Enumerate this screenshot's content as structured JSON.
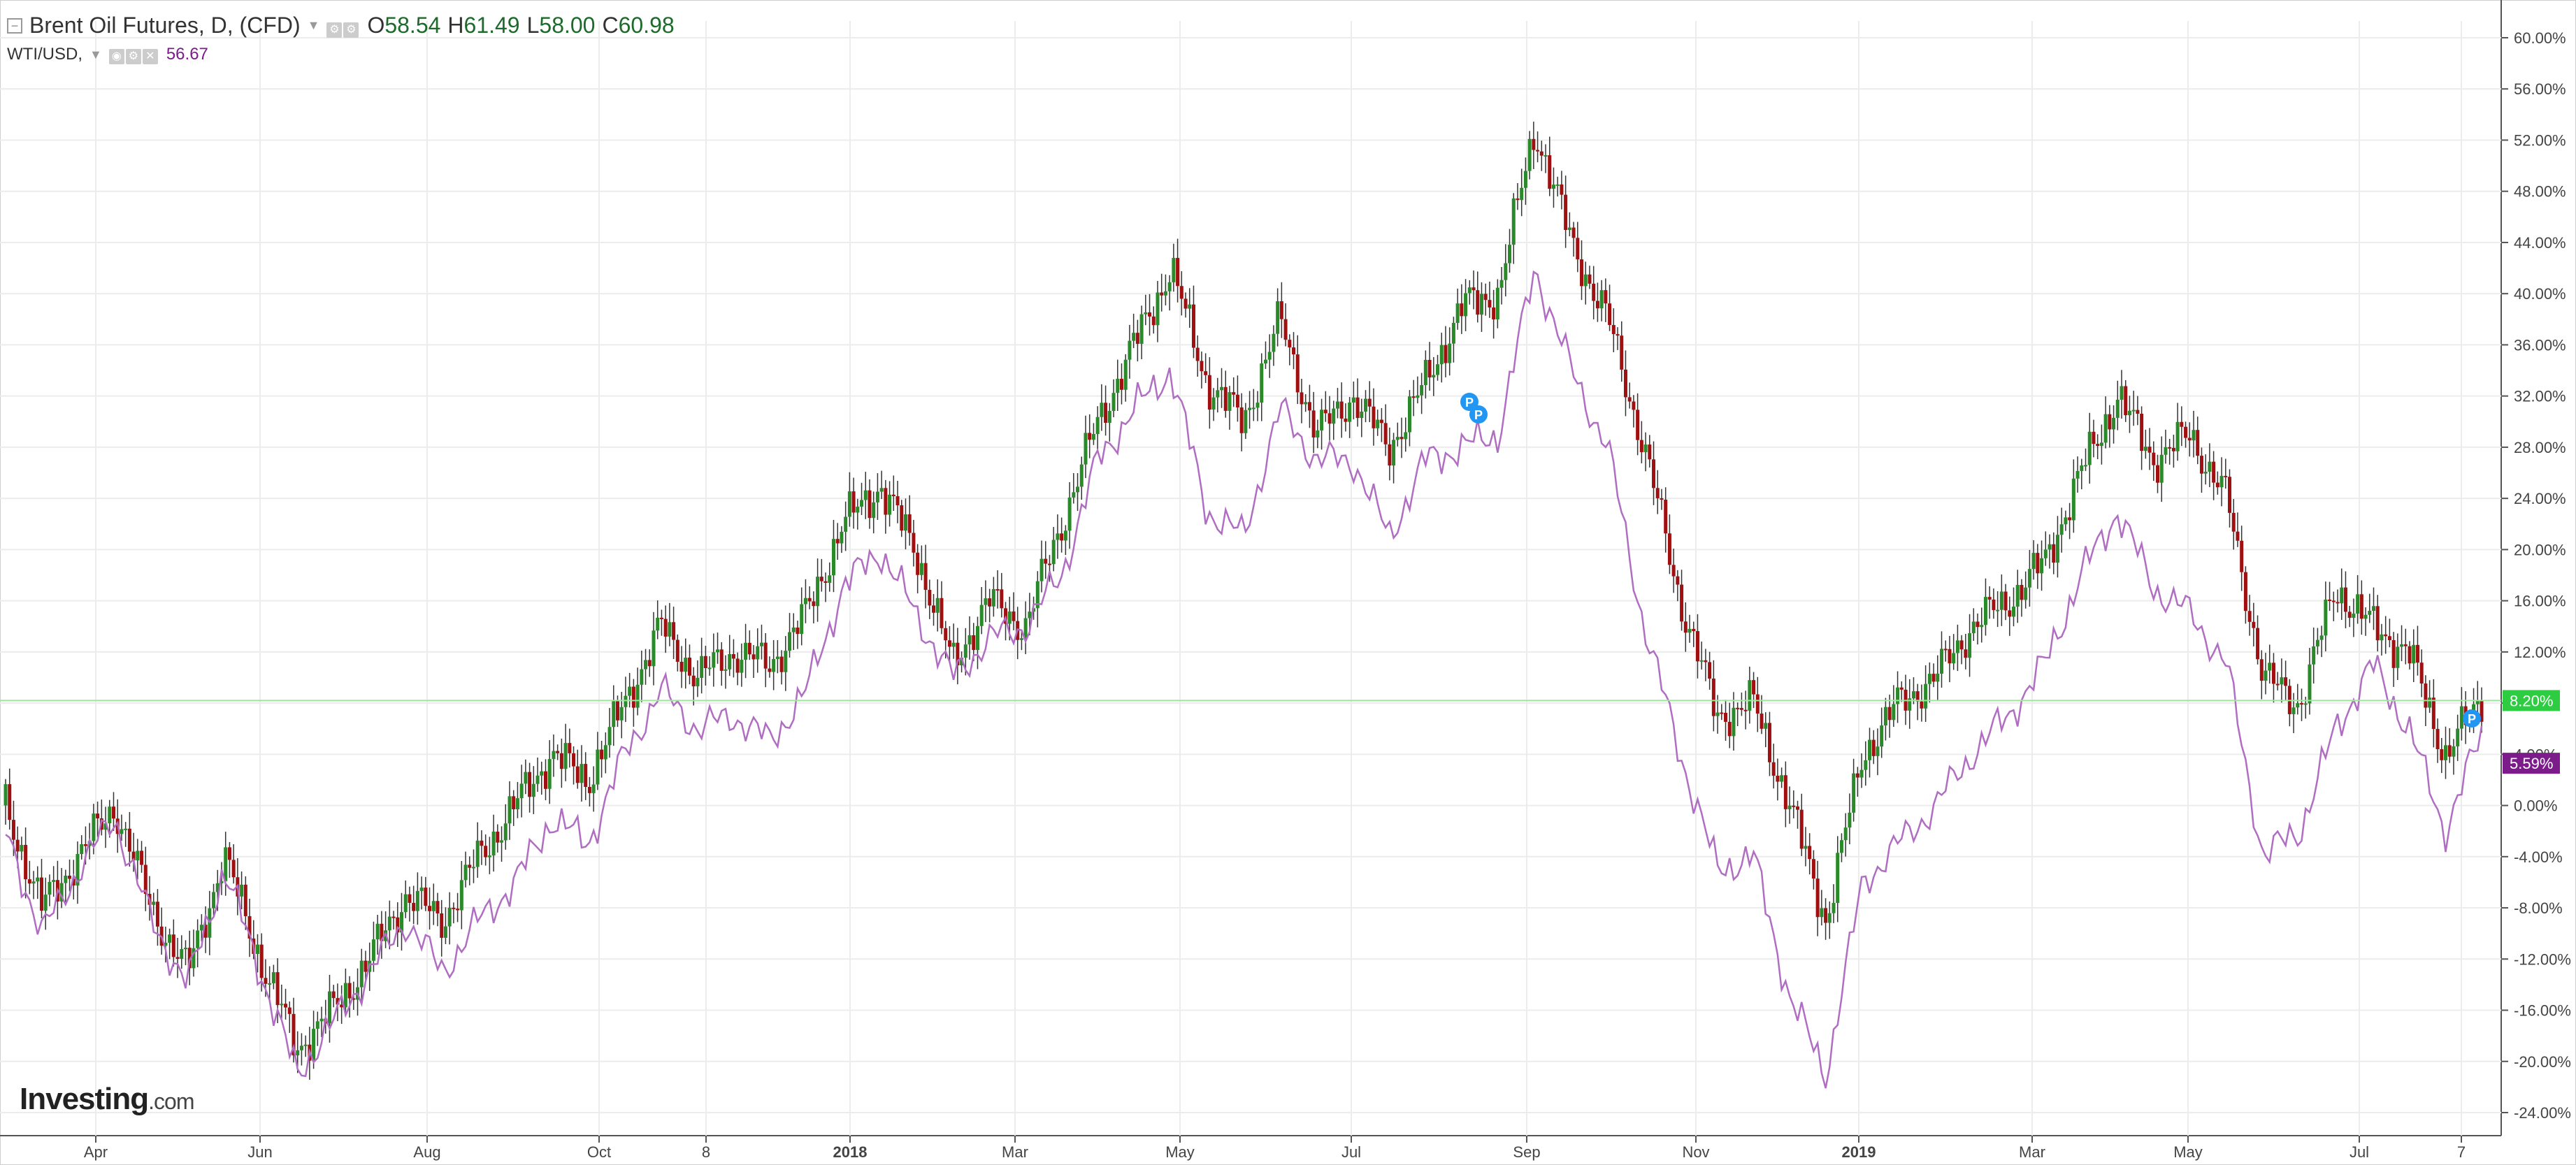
{
  "legend": {
    "main_title": "Brent Oil Futures, D, (CFD)",
    "open_key": "O",
    "open": "58.54",
    "high_key": "H",
    "high": "61.49",
    "low_key": "L",
    "low": "58.00",
    "close_key": "C",
    "close": "60.98",
    "compare_title": "WTI/USD,",
    "compare_value": "56.67"
  },
  "brand": {
    "name": "Investing",
    "domain": ".com"
  },
  "colors": {
    "up": "#2a8a2a",
    "down": "#a01010",
    "wick": "#333333",
    "compare_line": "#b06ec2",
    "grid": "#ececec",
    "brent_tag": "#2ecc40",
    "wti_tag": "#7b1c8a",
    "marker": "#2196f3"
  },
  "chart_data": {
    "type": "line",
    "x_labels": [
      "Apr",
      "Jun",
      "Aug",
      "Oct",
      "8",
      "2018",
      "Mar",
      "May",
      "Jul",
      "Sep",
      "Nov",
      "2019",
      "Mar",
      "May",
      "Jul",
      "7"
    ],
    "y_ticks": [
      "60.00%",
      "56.00%",
      "52.00%",
      "48.00%",
      "44.00%",
      "40.00%",
      "36.00%",
      "32.00%",
      "28.00%",
      "24.00%",
      "20.00%",
      "16.00%",
      "12.00%",
      "8.00%",
      "4.00%",
      "0.00%",
      "-4.00%",
      "-8.00%",
      "-12.00%",
      "-16.00%",
      "-20.00%",
      "-24.00%"
    ],
    "ylim": [
      -26,
      62
    ],
    "y_unit": "%",
    "grid": true,
    "series": [
      {
        "name": "Brent Oil Futures, D, (CFD)",
        "style": "candlestick",
        "last_value_label": "8.20%",
        "points": [
          [
            "Mar 2017",
            0
          ],
          [
            "Mar 2017",
            -8
          ],
          [
            "Apr 2017",
            -4
          ],
          [
            "Apr 2017",
            0
          ],
          [
            "May 2017",
            -8
          ],
          [
            "May 2017",
            -13
          ],
          [
            "Jun 2017",
            -4
          ],
          [
            "Jun 2017",
            -12
          ],
          [
            "Jun 2017",
            -19
          ],
          [
            "Jul 2017",
            -16
          ],
          [
            "Jul 2017",
            -12
          ],
          [
            "Aug 2017",
            -7
          ],
          [
            "Aug 2017",
            -9
          ],
          [
            "Sep 2017",
            -4
          ],
          [
            "Sep 2017",
            0
          ],
          [
            "Oct 2017",
            4
          ],
          [
            "Oct 2017",
            2
          ],
          [
            "Oct 2017",
            8
          ],
          [
            "Nov 2017",
            14
          ],
          [
            "Nov 2017",
            10
          ],
          [
            "Nov 2017",
            12
          ],
          [
            "Dec 2017",
            11
          ],
          [
            "Dec 2017",
            15
          ],
          [
            "Jan 2018",
            22
          ],
          [
            "Jan 2018",
            25
          ],
          [
            "Feb 2018",
            20
          ],
          [
            "Feb 2018",
            11
          ],
          [
            "Mar 2018",
            16
          ],
          [
            "Mar 2018",
            14
          ],
          [
            "Apr 2018",
            22
          ],
          [
            "Apr 2018",
            30
          ],
          [
            "May 2018",
            36
          ],
          [
            "May 2018",
            42
          ],
          [
            "Jun 2018",
            33
          ],
          [
            "Jun 2018",
            30
          ],
          [
            "Jul 2018",
            38
          ],
          [
            "Jul 2018",
            29
          ],
          [
            "Aug 2018",
            32
          ],
          [
            "Aug 2018",
            28
          ],
          [
            "Aug 2018",
            33
          ],
          [
            "Sep 2018",
            39
          ],
          [
            "Sep 2018",
            40
          ],
          [
            "Oct 2018",
            53
          ],
          [
            "Oct 2018",
            44
          ],
          [
            "Oct 2018",
            38
          ],
          [
            "Nov 2018",
            28
          ],
          [
            "Nov 2018",
            16
          ],
          [
            "Nov 2018",
            7
          ],
          [
            "Dec 2018",
            8
          ],
          [
            "Dec 2018",
            0
          ],
          [
            "Dec 2018",
            -9
          ],
          [
            "Jan 2019",
            4
          ],
          [
            "Jan 2019",
            8
          ],
          [
            "Feb 2019",
            10
          ],
          [
            "Feb 2019",
            14
          ],
          [
            "Mar 2019",
            16
          ],
          [
            "Mar 2019",
            19
          ],
          [
            "Apr 2019",
            26
          ],
          [
            "Apr 2019",
            32
          ],
          [
            "May 2019",
            27
          ],
          [
            "May 2019",
            29
          ],
          [
            "May 2019",
            24
          ],
          [
            "Jun 2019",
            10
          ],
          [
            "Jun 2019",
            8
          ],
          [
            "Jul 2019",
            17
          ],
          [
            "Jul 2019",
            14
          ],
          [
            "Jul 2019",
            12
          ],
          [
            "Aug 2019",
            4
          ],
          [
            "Aug 2019",
            8.2
          ]
        ]
      },
      {
        "name": "WTI/USD,",
        "style": "line",
        "last_value_label": "5.59%",
        "points": [
          [
            "Mar 2017",
            -2
          ],
          [
            "Mar 2017",
            -10
          ],
          [
            "Apr 2017",
            -5
          ],
          [
            "Apr 2017",
            -1
          ],
          [
            "May 2017",
            -9
          ],
          [
            "May 2017",
            -14
          ],
          [
            "Jun 2017",
            -5
          ],
          [
            "Jun 2017",
            -13
          ],
          [
            "Jun 2017",
            -21
          ],
          [
            "Jul 2017",
            -17
          ],
          [
            "Jul 2017",
            -13
          ],
          [
            "Aug 2017",
            -9
          ],
          [
            "Aug 2017",
            -13
          ],
          [
            "Sep 2017",
            -9
          ],
          [
            "Sep 2017",
            -6
          ],
          [
            "Oct 2017",
            -1
          ],
          [
            "Oct 2017",
            -3
          ],
          [
            "Oct 2017",
            4
          ],
          [
            "Nov 2017",
            9
          ],
          [
            "Nov 2017",
            6
          ],
          [
            "Nov 2017",
            7
          ],
          [
            "Dec 2017",
            5
          ],
          [
            "Dec 2017",
            9
          ],
          [
            "Jan 2018",
            17
          ],
          [
            "Jan 2018",
            20
          ],
          [
            "Feb 2018",
            15
          ],
          [
            "Feb 2018",
            10
          ],
          [
            "Mar 2018",
            13
          ],
          [
            "Mar 2018",
            14
          ],
          [
            "Apr 2018",
            18
          ],
          [
            "Apr 2018",
            27
          ],
          [
            "May 2018",
            31
          ],
          [
            "May 2018",
            34
          ],
          [
            "Jun 2018",
            23
          ],
          [
            "Jun 2018",
            21
          ],
          [
            "Jul 2018",
            31
          ],
          [
            "Jul 2018",
            27
          ],
          [
            "Aug 2018",
            27
          ],
          [
            "Aug 2018",
            21
          ],
          [
            "Aug 2018",
            27
          ],
          [
            "Sep 2018",
            28
          ],
          [
            "Sep 2018",
            29
          ],
          [
            "Oct 2018",
            42
          ],
          [
            "Oct 2018",
            34
          ],
          [
            "Oct 2018",
            28
          ],
          [
            "Nov 2018",
            14
          ],
          [
            "Nov 2018",
            4
          ],
          [
            "Nov 2018",
            -5
          ],
          [
            "Dec 2018",
            -4
          ],
          [
            "Dec 2018",
            -15
          ],
          [
            "Dec 2018",
            -21
          ],
          [
            "Jan 2019",
            -6
          ],
          [
            "Jan 2019",
            -3
          ],
          [
            "Feb 2019",
            0
          ],
          [
            "Feb 2019",
            4
          ],
          [
            "Mar 2019",
            7
          ],
          [
            "Mar 2019",
            11
          ],
          [
            "Apr 2019",
            18
          ],
          [
            "Apr 2019",
            23
          ],
          [
            "May 2019",
            17
          ],
          [
            "May 2019",
            15
          ],
          [
            "May 2019",
            11
          ],
          [
            "Jun 2019",
            -4
          ],
          [
            "Jun 2019",
            -2
          ],
          [
            "Jul 2019",
            6
          ],
          [
            "Jul 2019",
            11
          ],
          [
            "Jul 2019",
            6
          ],
          [
            "Aug 2019",
            -2
          ],
          [
            "Aug 2019",
            5.59
          ]
        ]
      }
    ],
    "markers": [
      {
        "label": "P",
        "near": "Aug 2018"
      },
      {
        "label": "P",
        "near": "Aug 2018"
      },
      {
        "label": "P",
        "near": "Aug 2019"
      }
    ]
  }
}
